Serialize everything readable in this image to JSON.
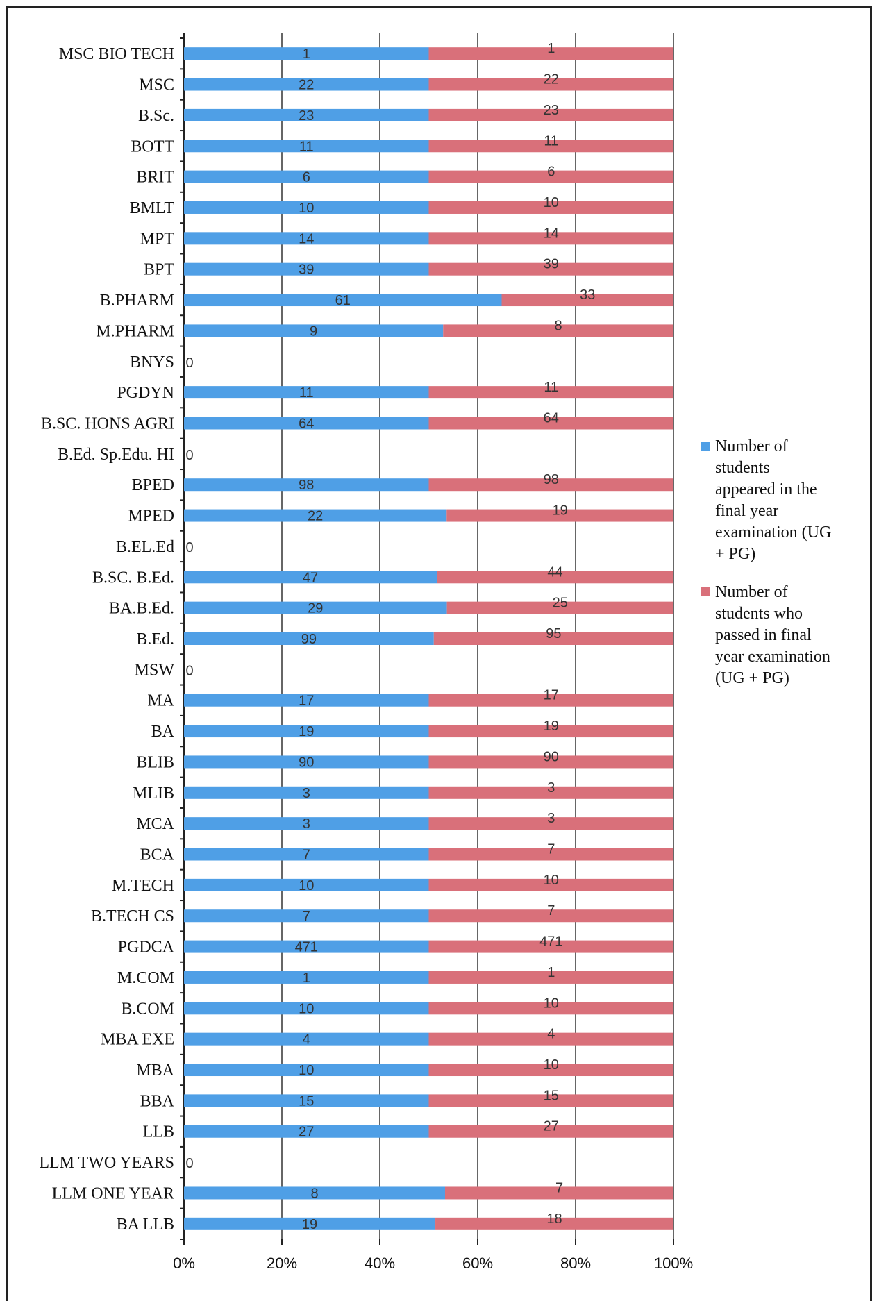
{
  "chart_data": {
    "type": "bar",
    "orientation": "horizontal",
    "stacking": "percent",
    "categories": [
      "MSC BIO TECH",
      "MSC",
      "B.Sc.",
      "BOTT",
      "BRIT",
      "BMLT",
      "MPT",
      "BPT",
      "B.PHARM",
      "M.PHARM",
      "BNYS",
      "PGDYN",
      "B.SC. HONS AGRI",
      "B.Ed. Sp.Edu. HI",
      "BPED",
      "MPED",
      "B.EL.Ed",
      "B.SC. B.Ed.",
      "BA.B.Ed.",
      "B.Ed.",
      "MSW",
      "MA",
      "BA",
      "BLIB",
      "MLIB",
      "MCA",
      "BCA",
      "M.TECH",
      "B.TECH CS",
      "PGDCA",
      "M.COM",
      "B.COM",
      "MBA EXE",
      "MBA",
      "BBA",
      "LLB",
      "LLM TWO YEARS",
      "LLM ONE YEAR",
      "BA LLB"
    ],
    "series": [
      {
        "name": "Number of students appeared in the final year examination (UG + PG)",
        "color": "#4f9fe6",
        "values": [
          1,
          22,
          23,
          11,
          6,
          10,
          14,
          39,
          61,
          9,
          0,
          11,
          64,
          0,
          98,
          22,
          0,
          47,
          29,
          99,
          0,
          17,
          19,
          90,
          3,
          3,
          7,
          10,
          7,
          471,
          1,
          10,
          4,
          10,
          15,
          27,
          0,
          8,
          19
        ]
      },
      {
        "name": "Number of students who passed in final year examination (UG + PG)",
        "color": "#d9707a",
        "values": [
          1,
          22,
          23,
          11,
          6,
          10,
          14,
          39,
          33,
          8,
          0,
          11,
          64,
          0,
          98,
          19,
          0,
          44,
          25,
          95,
          0,
          17,
          19,
          90,
          3,
          3,
          7,
          10,
          7,
          471,
          1,
          10,
          4,
          10,
          15,
          27,
          0,
          7,
          18
        ]
      }
    ],
    "zero_labels": [
      "0",
      "0",
      "0",
      "0",
      "0"
    ],
    "xticks": [
      "0%",
      "20%",
      "40%",
      "60%",
      "80%",
      "100%"
    ],
    "xlim": [
      0,
      100
    ],
    "grid": true,
    "legend_position": "right"
  },
  "legend": [
    {
      "lines": [
        "Number of",
        "students",
        "appeared in the",
        "final year",
        "examination (UG",
        "+ PG)"
      ]
    },
    {
      "lines": [
        "Number of",
        "students who",
        "passed in final",
        "year examination",
        "(UG + PG)"
      ]
    }
  ]
}
